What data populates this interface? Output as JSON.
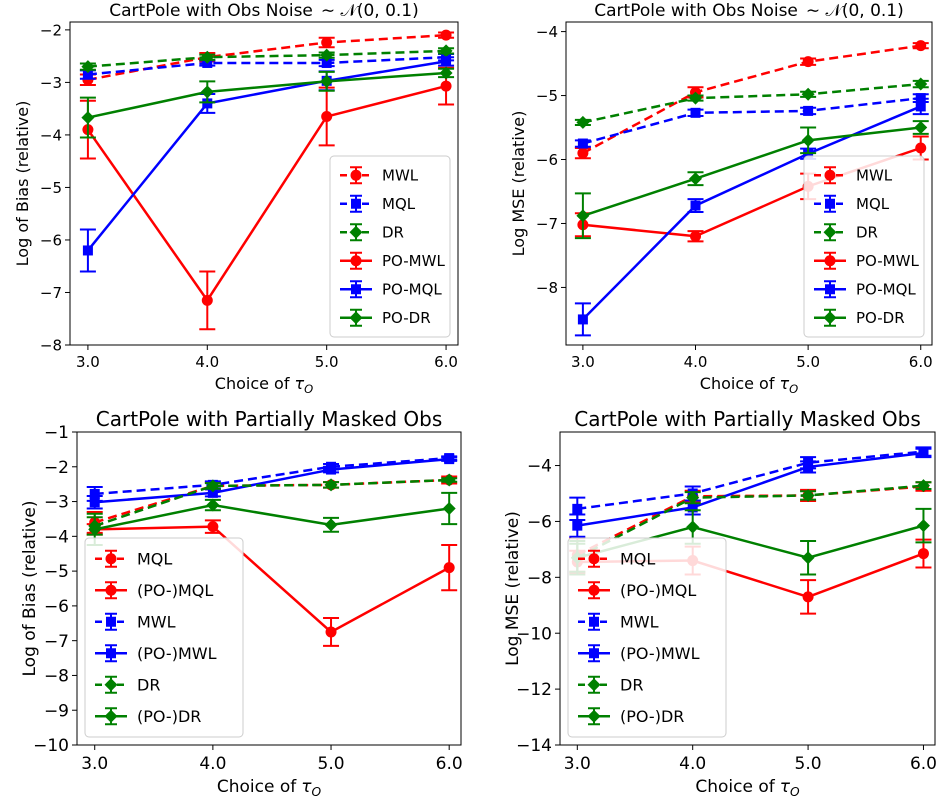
{
  "chart_data": [
    {
      "type": "line",
      "title": "CartPole with Obs Noise",
      "title_math": "∼ 𝒩(0, 0.1)",
      "xlabel": "Choice of",
      "xlabel_math": "τ",
      "xlabel_sub": "O",
      "ylabel": "Log of Bias (relative)",
      "x": [
        3.0,
        4.0,
        5.0,
        6.0
      ],
      "xticks": [
        "3.0",
        "4.0",
        "5.0",
        "6.0"
      ],
      "xlim": [
        2.85,
        6.1
      ],
      "ylim": [
        -8.0,
        -1.85
      ],
      "yticks": [
        -8,
        -7,
        -6,
        -5,
        -4,
        -3,
        -2
      ],
      "yticklabels": [
        "−8",
        "−7",
        "−6",
        "−5",
        "−4",
        "−3",
        "−2"
      ],
      "legend_position": "lower-right",
      "series": [
        {
          "name": "MWL",
          "color": "#ff0000",
          "dash": true,
          "marker": "circle",
          "y": [
            -2.95,
            -2.52,
            -2.24,
            -2.1
          ],
          "err": [
            0.1,
            0.08,
            0.09,
            0.05
          ]
        },
        {
          "name": "MQL",
          "color": "#0000ff",
          "dash": true,
          "marker": "square",
          "y": [
            -2.85,
            -2.63,
            -2.63,
            -2.52
          ],
          "err": [
            0.08,
            0.05,
            0.06,
            0.06
          ]
        },
        {
          "name": "DR",
          "color": "#008000",
          "dash": true,
          "marker": "diamond",
          "y": [
            -2.7,
            -2.52,
            -2.48,
            -2.4
          ],
          "err": [
            0.06,
            0.05,
            0.05,
            0.05
          ]
        },
        {
          "name": "PO-MWL",
          "color": "#ff0000",
          "dash": false,
          "marker": "circle",
          "y": [
            -3.9,
            -7.15,
            -3.65,
            -3.07
          ],
          "err": [
            0.55,
            0.55,
            0.55,
            0.35
          ]
        },
        {
          "name": "PO-MQL",
          "color": "#0000ff",
          "dash": false,
          "marker": "square",
          "y": [
            -6.2,
            -3.4,
            -2.97,
            -2.6
          ],
          "err": [
            0.4,
            0.18,
            0.18,
            0.08
          ]
        },
        {
          "name": "PO-DR",
          "color": "#008000",
          "dash": false,
          "marker": "diamond",
          "y": [
            -3.67,
            -3.18,
            -2.98,
            -2.82
          ],
          "err": [
            0.38,
            0.2,
            0.18,
            0.08
          ]
        }
      ]
    },
    {
      "type": "line",
      "title": "CartPole with Obs Noise",
      "title_math": "∼ 𝒩(0, 0.1)",
      "xlabel": "Choice of",
      "xlabel_math": "τ",
      "xlabel_sub": "O",
      "ylabel": "Log MSE (relative)",
      "x": [
        3.0,
        4.0,
        5.0,
        6.0
      ],
      "xticks": [
        "3.0",
        "4.0",
        "5.0",
        "6.0"
      ],
      "xlim": [
        2.85,
        6.1
      ],
      "ylim": [
        -8.9,
        -3.85
      ],
      "yticks": [
        -8,
        -7,
        -6,
        -5,
        -4
      ],
      "yticklabels": [
        "−8",
        "−7",
        "−6",
        "−5",
        "−4"
      ],
      "legend_position": "lower-right",
      "series": [
        {
          "name": "MWL",
          "color": "#ff0000",
          "dash": true,
          "marker": "circle",
          "y": [
            -5.9,
            -4.95,
            -4.47,
            -4.22
          ],
          "err": [
            0.08,
            0.08,
            0.05,
            0.04
          ]
        },
        {
          "name": "MQL",
          "color": "#0000ff",
          "dash": true,
          "marker": "square",
          "y": [
            -5.75,
            -5.27,
            -5.24,
            -5.04
          ],
          "err": [
            0.05,
            0.05,
            0.05,
            0.06
          ]
        },
        {
          "name": "DR",
          "color": "#008000",
          "dash": true,
          "marker": "diamond",
          "y": [
            -5.42,
            -5.04,
            -4.98,
            -4.82
          ],
          "err": [
            0.04,
            0.04,
            0.04,
            0.05
          ]
        },
        {
          "name": "PO-MWL",
          "color": "#ff0000",
          "dash": false,
          "marker": "circle",
          "y": [
            -7.02,
            -7.2,
            -6.42,
            -5.82
          ],
          "err": [
            0.18,
            0.08,
            0.2,
            0.18
          ]
        },
        {
          "name": "PO-MQL",
          "color": "#0000ff",
          "dash": false,
          "marker": "square",
          "y": [
            -8.5,
            -6.72,
            -5.91,
            -5.17
          ],
          "err": [
            0.25,
            0.1,
            0.08,
            0.12
          ]
        },
        {
          "name": "PO-DR",
          "color": "#008000",
          "dash": false,
          "marker": "diamond",
          "y": [
            -6.88,
            -6.3,
            -5.7,
            -5.5
          ],
          "err": [
            0.35,
            0.1,
            0.2,
            0.1
          ]
        }
      ]
    },
    {
      "type": "line",
      "title": "CartPole with Partially Masked Obs",
      "title_math": "",
      "xlabel": "Choice of",
      "xlabel_math": "τ",
      "xlabel_sub": "O",
      "ylabel": "Log of Bias (relative)",
      "x": [
        3.0,
        4.0,
        5.0,
        6.0
      ],
      "xticks": [
        "3.0",
        "4.0",
        "5.0",
        "6.0"
      ],
      "xlim": [
        2.85,
        6.1
      ],
      "ylim": [
        -10.0,
        -1.0
      ],
      "yticks": [
        -10,
        -9,
        -8,
        -7,
        -6,
        -5,
        -4,
        -3,
        -2,
        -1
      ],
      "yticklabels": [
        "−10",
        "−9",
        "−8",
        "−7",
        "−6",
        "−5",
        "−4",
        "−3",
        "−2",
        "−1"
      ],
      "legend_position": "lower-left",
      "series": [
        {
          "name": "MQL",
          "color": "#ff0000",
          "dash": true,
          "marker": "circle",
          "y": [
            -3.6,
            -2.55,
            -2.52,
            -2.38
          ],
          "err": [
            0.3,
            0.1,
            0.08,
            0.1
          ]
        },
        {
          "name": "(PO-)MQL",
          "color": "#ff0000",
          "dash": false,
          "marker": "circle",
          "y": [
            -3.8,
            -3.72,
            -6.75,
            -4.9
          ],
          "err": [
            0.15,
            0.18,
            0.4,
            0.65
          ]
        },
        {
          "name": "MWL",
          "color": "#0000ff",
          "dash": true,
          "marker": "square",
          "y": [
            -2.78,
            -2.52,
            -2.0,
            -1.75
          ],
          "err": [
            0.2,
            0.1,
            0.08,
            0.05
          ]
        },
        {
          "name": "(PO-)MWL",
          "color": "#0000ff",
          "dash": false,
          "marker": "square",
          "y": [
            -3.02,
            -2.75,
            -2.08,
            -1.78
          ],
          "err": [
            0.18,
            0.1,
            0.08,
            0.05
          ]
        },
        {
          "name": "DR",
          "color": "#008000",
          "dash": true,
          "marker": "diamond",
          "y": [
            -3.7,
            -2.55,
            -2.52,
            -2.38
          ],
          "err": [
            0.25,
            0.08,
            0.08,
            0.05
          ]
        },
        {
          "name": "(PO-)DR",
          "color": "#008000",
          "dash": false,
          "marker": "diamond",
          "y": [
            -3.8,
            -3.1,
            -3.67,
            -3.2
          ],
          "err": [
            0.45,
            0.15,
            0.2,
            0.45
          ]
        }
      ]
    },
    {
      "type": "line",
      "title": "CartPole with Partially Masked Obs",
      "title_math": "",
      "xlabel": "Choice of",
      "xlabel_math": "τ",
      "xlabel_sub": "O",
      "ylabel": "Log MSE (relative)",
      "x": [
        3.0,
        4.0,
        5.0,
        6.0
      ],
      "xticks": [
        "3.0",
        "4.0",
        "5.0",
        "6.0"
      ],
      "xlim": [
        2.85,
        6.1
      ],
      "ylim": [
        -14.0,
        -2.8
      ],
      "yticks": [
        -14,
        -12,
        -10,
        -8,
        -6,
        -4
      ],
      "yticklabels": [
        "−14",
        "−12",
        "−10",
        "−8",
        "−6",
        "−4"
      ],
      "legend_position": "lower-left",
      "series": [
        {
          "name": "MQL",
          "color": "#ff0000",
          "dash": true,
          "marker": "circle",
          "y": [
            -7.2,
            -5.1,
            -5.07,
            -4.75
          ],
          "err": [
            0.6,
            0.2,
            0.2,
            0.15
          ]
        },
        {
          "name": "(PO-)MQL",
          "color": "#ff0000",
          "dash": false,
          "marker": "circle",
          "y": [
            -7.45,
            -7.4,
            -8.7,
            -7.15
          ],
          "err": [
            0.4,
            0.5,
            0.6,
            0.5
          ]
        },
        {
          "name": "MWL",
          "color": "#0000ff",
          "dash": true,
          "marker": "square",
          "y": [
            -5.55,
            -5.0,
            -3.9,
            -3.5
          ],
          "err": [
            0.4,
            0.25,
            0.2,
            0.15
          ]
        },
        {
          "name": "(PO-)MWL",
          "color": "#0000ff",
          "dash": false,
          "marker": "square",
          "y": [
            -6.15,
            -5.5,
            -4.05,
            -3.55
          ],
          "err": [
            0.4,
            0.25,
            0.2,
            0.15
          ]
        },
        {
          "name": "DR",
          "color": "#008000",
          "dash": true,
          "marker": "diamond",
          "y": [
            -7.3,
            -5.15,
            -5.07,
            -4.72
          ],
          "err": [
            0.5,
            0.2,
            0.15,
            0.12
          ]
        },
        {
          "name": "(PO-)DR",
          "color": "#008000",
          "dash": false,
          "marker": "diamond",
          "y": [
            -7.3,
            -6.2,
            -7.3,
            -6.15
          ],
          "err": [
            0.6,
            0.6,
            0.6,
            0.6
          ]
        }
      ]
    }
  ]
}
